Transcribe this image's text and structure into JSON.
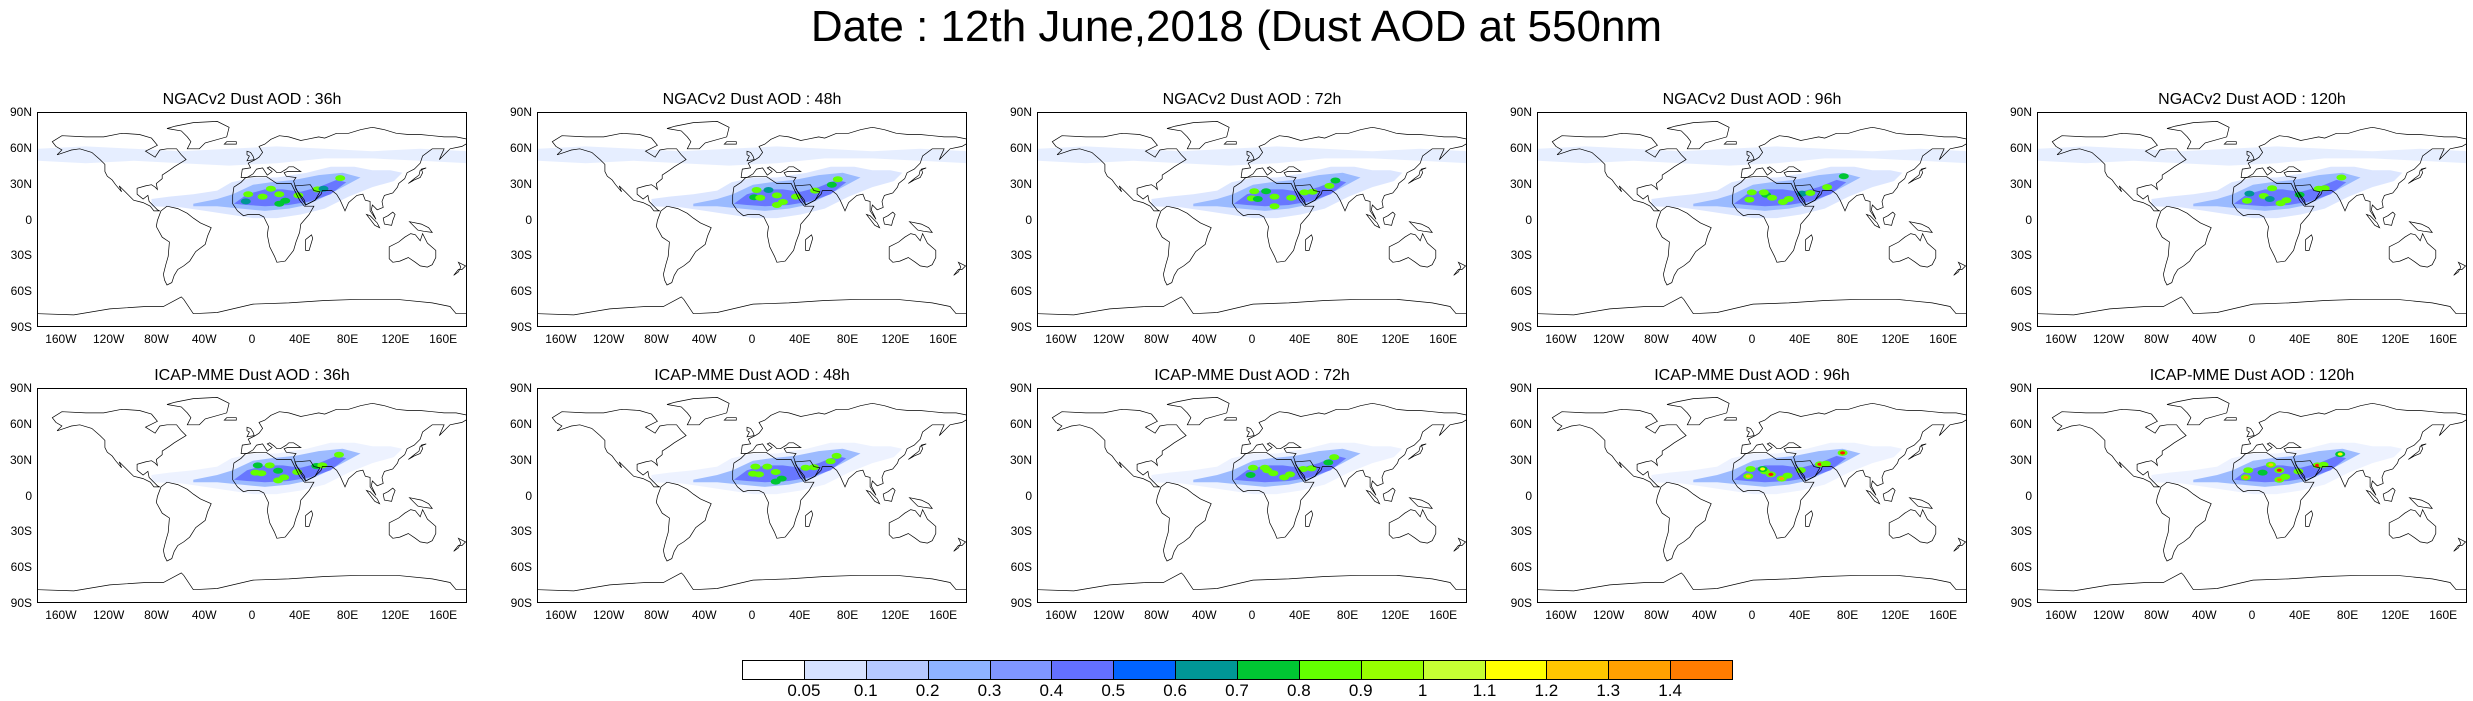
{
  "title": "Date : 12th June,2018 (Dust AOD at 550nm",
  "lat_labels": [
    "90N",
    "60N",
    "30N",
    "0",
    "30S",
    "60S",
    "90S"
  ],
  "lon_labels": [
    "160W",
    "120W",
    "80W",
    "40W",
    "0",
    "40E",
    "80E",
    "120E",
    "160E"
  ],
  "panels": [
    {
      "title": "NGACv2 Dust AOD : 36h",
      "model": "NGACv2",
      "lead": "36h",
      "intensity": 0.55
    },
    {
      "title": "NGACv2 Dust AOD : 48h",
      "model": "NGACv2",
      "lead": "48h",
      "intensity": 0.6
    },
    {
      "title": "NGACv2 Dust AOD : 72h",
      "model": "NGACv2",
      "lead": "72h",
      "intensity": 0.65
    },
    {
      "title": "NGACv2 Dust AOD : 96h",
      "model": "NGACv2",
      "lead": "96h",
      "intensity": 0.62
    },
    {
      "title": "NGACv2 Dust AOD : 120h",
      "model": "NGACv2",
      "lead": "120h",
      "intensity": 0.6
    },
    {
      "title": "ICAP-MME Dust AOD : 36h",
      "model": "ICAP-MME",
      "lead": "36h",
      "intensity": 0.7
    },
    {
      "title": "ICAP-MME Dust AOD : 48h",
      "model": "ICAP-MME",
      "lead": "48h",
      "intensity": 0.72
    },
    {
      "title": "ICAP-MME Dust AOD : 72h",
      "model": "ICAP-MME",
      "lead": "72h",
      "intensity": 0.8
    },
    {
      "title": "ICAP-MME Dust AOD : 96h",
      "model": "ICAP-MME",
      "lead": "96h",
      "intensity": 0.95
    },
    {
      "title": "ICAP-MME Dust AOD : 120h",
      "model": "ICAP-MME",
      "lead": "120h",
      "intensity": 0.9
    }
  ],
  "colorbar": {
    "labels": [
      "0.05",
      "0.1",
      "0.2",
      "0.3",
      "0.4",
      "0.5",
      "0.6",
      "0.7",
      "0.8",
      "0.9",
      "1",
      "1.1",
      "1.2",
      "1.3",
      "1.4"
    ],
    "colors": [
      "#ffffff",
      "#d6e2ff",
      "#b5c9ff",
      "#8eb2ff",
      "#7f96ff",
      "#6370ff",
      "#0063ff",
      "#009696",
      "#00c633",
      "#63ff00",
      "#96ff00",
      "#c6ff33",
      "#ffff00",
      "#ffc600",
      "#ffa000",
      "#ff7c00",
      "#ff1900"
    ]
  }
}
